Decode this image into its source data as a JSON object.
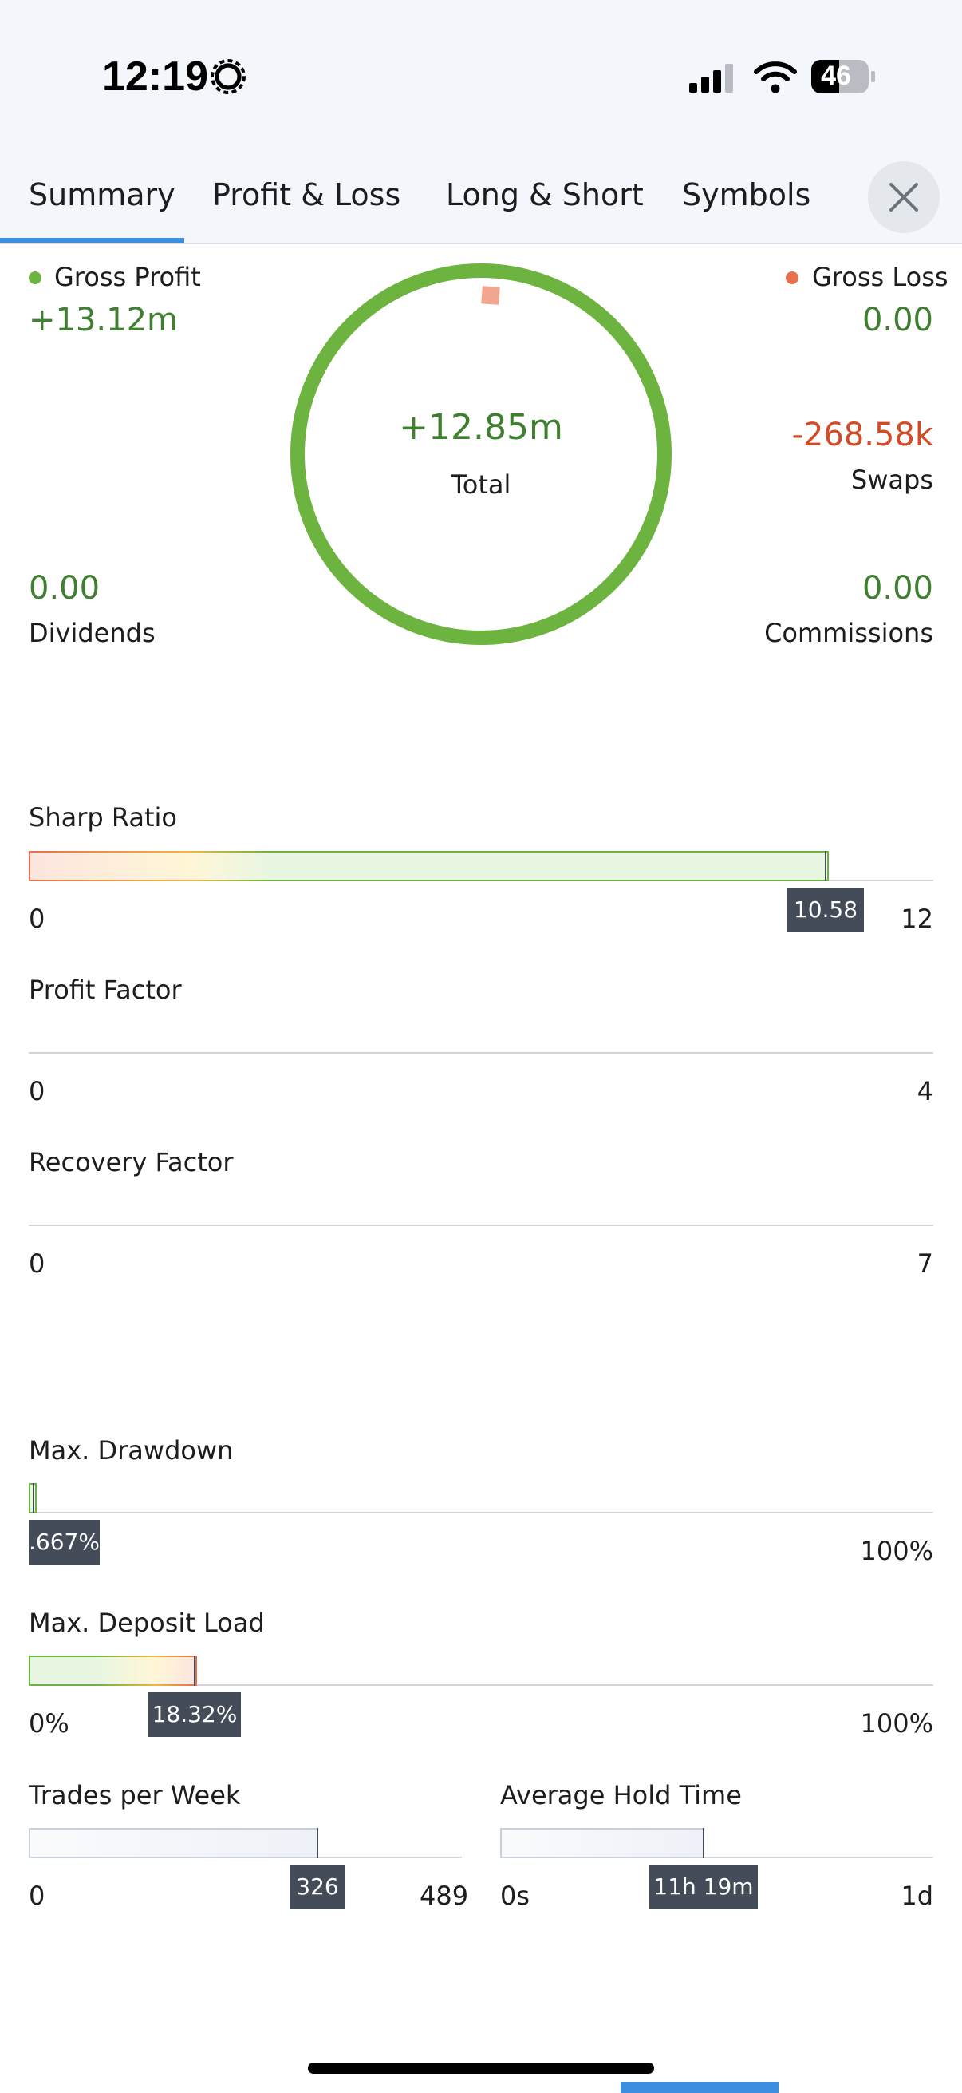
{
  "status_bar": {
    "time": "12:19",
    "battery": "46"
  },
  "tabs": [
    "Summary",
    "Profit & Loss",
    "Long & Short",
    "Symbols"
  ],
  "summary": {
    "gross_profit_label": "Gross Profit",
    "gross_profit_value": "+13.12m",
    "gross_loss_label": "Gross Loss",
    "gross_loss_value": "0.00",
    "total_value": "+12.85m",
    "total_label": "Total",
    "swaps_value": "-268.58k",
    "swaps_label": "Swaps",
    "dividends_value": "0.00",
    "dividends_label": "Dividends",
    "commissions_value": "0.00",
    "commissions_label": "Commissions",
    "colors": {
      "profit": "#6db33f",
      "loss": "#e8704d",
      "profit_text": "#3f7f2f",
      "loss_text": "#d24b26"
    }
  },
  "metrics": {
    "sharp_ratio": {
      "title": "Sharp Ratio",
      "min": "0",
      "max": "12",
      "value_label": "10.58",
      "value": 10.58,
      "range": [
        0,
        12
      ]
    },
    "profit_factor": {
      "title": "Profit Factor",
      "min": "0",
      "max": "4"
    },
    "recovery_factor": {
      "title": "Recovery Factor",
      "min": "0",
      "max": "7"
    },
    "max_drawdown": {
      "title": "Max. Drawdown",
      "max": "100%",
      "value_label": ".667%",
      "value": 0.667,
      "range": [
        0,
        100
      ]
    },
    "max_deposit_load": {
      "title": "Max. Deposit Load",
      "min": "0%",
      "max": "100%",
      "value_label": "18.32%",
      "value": 18.32,
      "range": [
        0,
        100
      ]
    },
    "trades_per_week": {
      "title": "Trades per Week",
      "min": "0",
      "max": "489",
      "value_label": "326",
      "value": 326,
      "range": [
        0,
        489
      ]
    },
    "average_hold_time": {
      "title": "Average Hold Time",
      "min": "0s",
      "max": "1d",
      "value_label": "11h 19m",
      "value_fraction": 0.4715
    }
  }
}
